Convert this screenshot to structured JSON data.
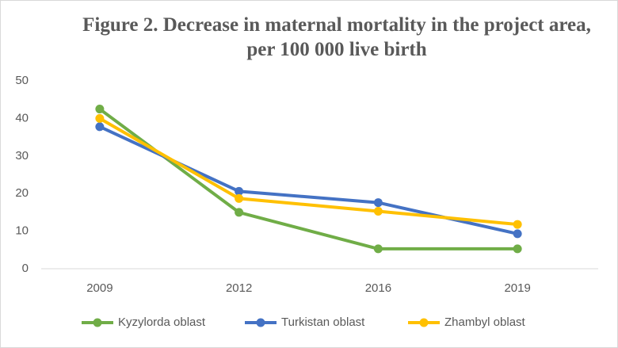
{
  "chart_data": {
    "type": "line",
    "title": "Figure 2. Decrease in maternal mortality in the project area, per 100 000 live birth",
    "categories": [
      "2009",
      "2012",
      "2016",
      "2019"
    ],
    "series": [
      {
        "name": "Kyzylorda oblast",
        "color": "#70ad47",
        "values": [
          42.5,
          15,
          5.3,
          5.3
        ]
      },
      {
        "name": "Turkistan oblast",
        "color": "#4472c4",
        "values": [
          37.8,
          20.6,
          17.6,
          9.3
        ]
      },
      {
        "name": "Zhambyl oblast",
        "color": "#ffc000",
        "values": [
          40,
          18.7,
          15.3,
          11.8
        ]
      }
    ],
    "ylim": [
      0,
      50
    ],
    "yticks": [
      0,
      10,
      20,
      30,
      40,
      50
    ],
    "grid": false,
    "legend": "bottom"
  }
}
